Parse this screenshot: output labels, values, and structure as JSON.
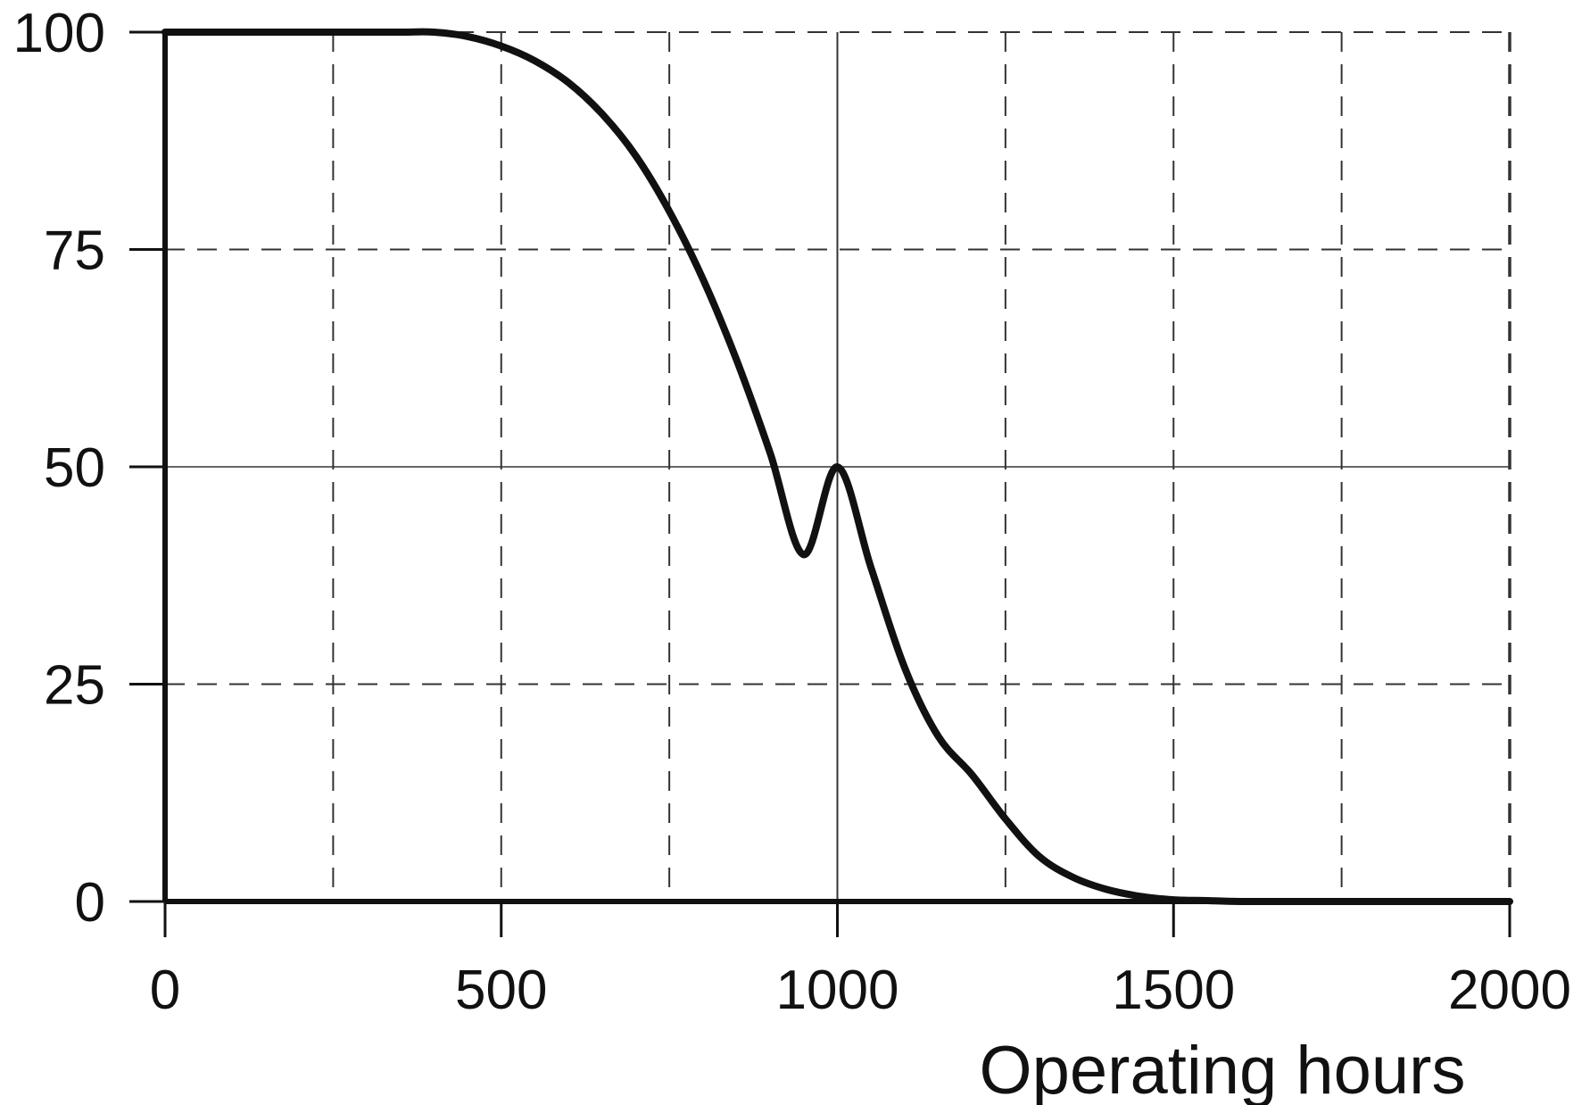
{
  "chart_data": {
    "type": "line",
    "title": "",
    "xlabel": "Operating hours",
    "ylabel": "",
    "xlim": [
      0,
      2000
    ],
    "ylim": [
      0,
      100
    ],
    "x_ticks": [
      0,
      500,
      1000,
      1500,
      2000
    ],
    "x_tick_labels": [
      "0",
      "500",
      "1000",
      "1500",
      "2000"
    ],
    "y_ticks": [
      0,
      25,
      50,
      75,
      100
    ],
    "y_tick_labels": [
      "0",
      "25",
      "50",
      "75",
      "100"
    ],
    "x_minor_gridlines": [
      250,
      750,
      1250,
      1750
    ],
    "grid": true,
    "grid_style": "dashed",
    "reference_lines": {
      "x": 1000,
      "y": 50,
      "style": "solid"
    },
    "colors": {
      "line": "#111111",
      "grid": "#333333",
      "axis": "#111111"
    },
    "series": [
      {
        "name": "",
        "x": [
          0,
          100,
          200,
          300,
          350,
          400,
          450,
          500,
          550,
          600,
          650,
          700,
          750,
          800,
          850,
          900,
          950,
          1000,
          1050,
          1100,
          1150,
          1200,
          1250,
          1300,
          1350,
          1400,
          1450,
          1500,
          1550,
          1600,
          1700,
          1800,
          1900,
          2000
        ],
        "y": [
          100,
          100,
          100,
          100,
          100,
          100,
          99.5,
          98.4,
          96.7,
          94.2,
          90.6,
          85.8,
          79.4,
          71.6,
          62.3,
          51.6,
          39.9,
          50,
          38.4,
          26.9,
          19.0,
          14.6,
          9.5,
          5.2,
          2.8,
          1.4,
          0.6,
          0.2,
          0.1,
          0,
          0,
          0,
          0,
          0
        ]
      }
    ]
  }
}
